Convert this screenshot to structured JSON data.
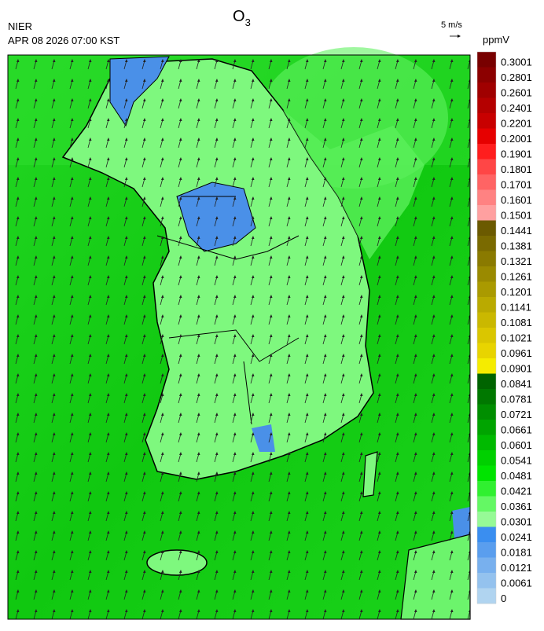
{
  "header": {
    "title": {
      "text": "O",
      "subscript": "3"
    },
    "agency": "NIER",
    "timestamp": "APR 08 2026 07:00 KST",
    "wind_scale": "5 m/s"
  },
  "colorbar": {
    "unit": "ppmV",
    "segments": [
      {
        "label": "0.3001",
        "color": "#780000"
      },
      {
        "label": "0.2801",
        "color": "#8c0000"
      },
      {
        "label": "0.2601",
        "color": "#a00000"
      },
      {
        "label": "0.2401",
        "color": "#b40000"
      },
      {
        "label": "0.2201",
        "color": "#c80000"
      },
      {
        "label": "0.2001",
        "color": "#e60000"
      },
      {
        "label": "0.1901",
        "color": "#ff1e1e"
      },
      {
        "label": "0.1801",
        "color": "#ff4646"
      },
      {
        "label": "0.1701",
        "color": "#ff6464"
      },
      {
        "label": "0.1601",
        "color": "#ff8282"
      },
      {
        "label": "0.1501",
        "color": "#ffa0a0"
      },
      {
        "label": "0.1441",
        "color": "#6b5a00"
      },
      {
        "label": "0.1381",
        "color": "#7a6a00"
      },
      {
        "label": "0.1321",
        "color": "#8a7a00"
      },
      {
        "label": "0.1261",
        "color": "#9a8a00"
      },
      {
        "label": "0.1201",
        "color": "#aa9a00"
      },
      {
        "label": "0.1141",
        "color": "#baaa00"
      },
      {
        "label": "0.1081",
        "color": "#cab800"
      },
      {
        "label": "0.1021",
        "color": "#dac600"
      },
      {
        "label": "0.0961",
        "color": "#e8d400"
      },
      {
        "label": "0.0901",
        "color": "#f5ec00"
      },
      {
        "label": "0.0841",
        "color": "#006400"
      },
      {
        "label": "0.0781",
        "color": "#007800"
      },
      {
        "label": "0.0721",
        "color": "#008e00"
      },
      {
        "label": "0.0661",
        "color": "#00a400"
      },
      {
        "label": "0.0601",
        "color": "#00ba00"
      },
      {
        "label": "0.0541",
        "color": "#00d000"
      },
      {
        "label": "0.0481",
        "color": "#00e400"
      },
      {
        "label": "0.0421",
        "color": "#30f030"
      },
      {
        "label": "0.0361",
        "color": "#64f864"
      },
      {
        "label": "0.0301",
        "color": "#96fa96"
      },
      {
        "label": "0.0241",
        "color": "#3a8ef0"
      },
      {
        "label": "0.0181",
        "color": "#5a9eee"
      },
      {
        "label": "0.0121",
        "color": "#78b0ee"
      },
      {
        "label": "0.0061",
        "color": "#94c2ee"
      },
      {
        "label": "0",
        "color": "#b0d4f0"
      }
    ]
  }
}
